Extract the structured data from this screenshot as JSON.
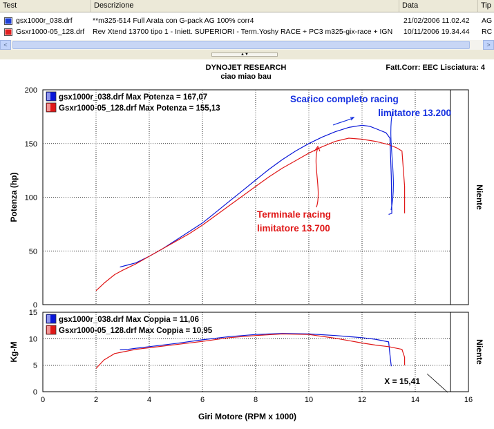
{
  "table": {
    "columns": [
      "Test",
      "Descrizione",
      "Data",
      "Tip"
    ],
    "rows": [
      {
        "test": "gsx1000r_038.drf",
        "descrizione": "**m325-514 Full Arata con G-pack AG 100% corr4",
        "data": "21/02/2006 11.02.42",
        "tip": "AG",
        "icon_color": "#1f3fd6"
      },
      {
        "test": "Gsxr1000-05_128.drf",
        "descrizione": "Rev Xtend 13700 tipo 1 - Iniett. SUPERIORI - Term.Yoshy RACE + PC3 m325-gix-race + IGN",
        "data": "10/11/2006 19.34.44",
        "tip": "RC",
        "icon_color": "#e02020"
      }
    ]
  },
  "scrollbar": {
    "left_arrow": "<",
    "right_arrow": ">"
  },
  "splitter": {
    "grip": "▲▼"
  },
  "chart_header": {
    "title": "DYNOJET RESEARCH",
    "subtitle": "ciao miao bau",
    "right": "Fatt.Corr: EEC  Lisciatura: 4"
  },
  "colors": {
    "blue": "#0a17d8",
    "red": "#e01818",
    "annotation_blue": "#1530e0",
    "annotation_red": "#e01818"
  },
  "chart_data": [
    {
      "type": "line",
      "ylabel": "Potenza (hp)",
      "right_label": "Niente",
      "xlim": [
        0,
        16
      ],
      "ylim": [
        0,
        200
      ],
      "yticks": [
        0,
        50,
        100,
        150,
        200
      ],
      "grid": true,
      "legend_position": "top-left",
      "legend": [
        "gsx1000r_038.drf Max Potenza = 167,07",
        "Gsxr1000-05_128.drf Max Potenza = 155,13"
      ],
      "annotations": [
        {
          "text": "Scarico completo racing",
          "color": "blue"
        },
        {
          "text": "limitatore 13.200",
          "color": "blue"
        },
        {
          "text": "Terminale racing",
          "color": "red"
        },
        {
          "text": "limitatore 13.700",
          "color": "red"
        }
      ],
      "series": [
        {
          "name": "gsx1000r_038.drf",
          "color": "blue",
          "x": [
            2.9,
            3.2,
            3.5,
            4.0,
            4.5,
            5.0,
            5.5,
            6.0,
            6.5,
            7.0,
            7.5,
            8.0,
            8.5,
            9.0,
            9.5,
            10.0,
            10.5,
            11.0,
            11.5,
            12.0,
            12.3,
            12.6,
            12.9,
            13.05,
            13.1,
            13.12,
            13.0
          ],
          "y": [
            35,
            37,
            39,
            45,
            52,
            60,
            68,
            76,
            86,
            96,
            106,
            116,
            126,
            135,
            143,
            150,
            156,
            161,
            165,
            167,
            166,
            163,
            160,
            155,
            120,
            85,
            84
          ]
        },
        {
          "name": "Gsxr1000-05_128.drf",
          "color": "red",
          "x": [
            2.0,
            2.3,
            2.7,
            3.0,
            3.5,
            4.0,
            4.5,
            5.0,
            5.5,
            6.0,
            6.5,
            7.0,
            7.5,
            8.0,
            8.5,
            9.0,
            9.5,
            10.0,
            10.5,
            11.0,
            11.5,
            12.0,
            12.5,
            13.0,
            13.3,
            13.5,
            13.6,
            13.6
          ],
          "y": [
            13,
            20,
            28,
            32,
            38,
            45,
            52,
            59,
            66,
            74,
            83,
            92,
            101,
            110,
            119,
            127,
            134,
            141,
            147,
            152,
            155,
            154,
            152,
            149,
            146,
            143,
            110,
            85
          ]
        }
      ]
    },
    {
      "type": "line",
      "ylabel": "Kg-M",
      "xlabel": "Giri Motore (RPM x 1000)",
      "right_label": "Niente",
      "xlim": [
        0,
        16
      ],
      "ylim": [
        0,
        15
      ],
      "yticks": [
        0,
        5,
        10,
        15
      ],
      "xticks": [
        0,
        2,
        4,
        6,
        8,
        10,
        12,
        14,
        16
      ],
      "grid": true,
      "legend_position": "top-left",
      "legend": [
        "gsx1000r_038.drf Max Coppia = 11,06",
        "Gsxr1000-05_128.drf Max Coppia = 10,95"
      ],
      "marker_label": "X = 15,41",
      "series": [
        {
          "name": "gsx1000r_038.drf",
          "color": "blue",
          "x": [
            2.9,
            3.2,
            3.5,
            4.0,
            5.0,
            6.0,
            7.0,
            8.0,
            9.0,
            10.0,
            11.0,
            12.0,
            12.5,
            13.0,
            13.05,
            13.1
          ],
          "y": [
            7.9,
            8.0,
            8.2,
            8.5,
            9.1,
            9.8,
            10.4,
            10.8,
            11.0,
            10.9,
            10.6,
            10.2,
            9.9,
            9.4,
            7.0,
            4.8
          ]
        },
        {
          "name": "Gsxr1000-05_128.drf",
          "color": "red",
          "x": [
            2.0,
            2.3,
            2.7,
            3.0,
            3.5,
            4.0,
            5.0,
            6.0,
            7.0,
            8.0,
            9.0,
            10.0,
            11.0,
            12.0,
            12.5,
            13.0,
            13.5,
            13.6,
            13.6
          ],
          "y": [
            4.4,
            6.0,
            7.2,
            7.5,
            8.0,
            8.3,
            8.9,
            9.5,
            10.2,
            10.6,
            10.9,
            10.8,
            10.1,
            9.2,
            8.8,
            8.5,
            8.0,
            6.5,
            5.0
          ]
        }
      ]
    }
  ]
}
